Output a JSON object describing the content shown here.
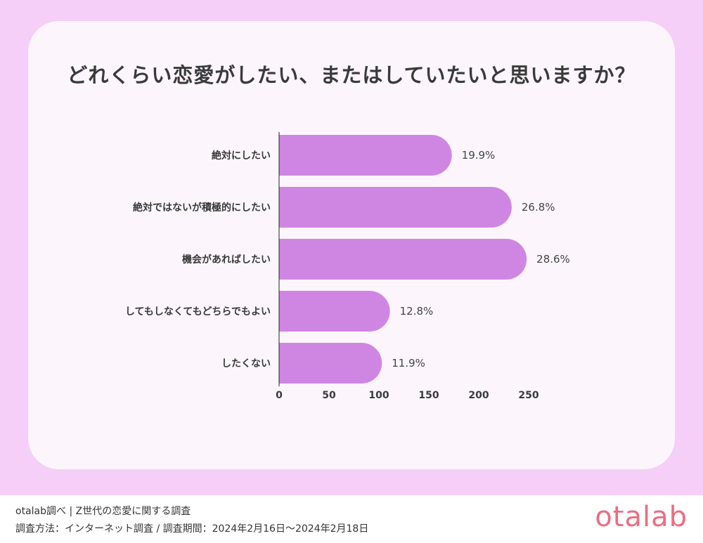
{
  "title": "どれくらい恋愛がしたい、またはしていたいと思いますか？",
  "chart_data": {
    "type": "bar",
    "orientation": "horizontal",
    "categories": [
      "絶対にしたい",
      "絶対ではないが積極的にしたい",
      "機会があればしたい",
      "してもしなくてもどちらでもよい",
      "したくない"
    ],
    "values": [
      173,
      233,
      248,
      111,
      103
    ],
    "data_labels": [
      "19.9%",
      "26.8%",
      "28.6%",
      "12.8%",
      "11.9%"
    ],
    "xlim": [
      0,
      250
    ],
    "xticks": [
      "0",
      "50",
      "100",
      "150",
      "200",
      "250"
    ],
    "color": "#cf86e3",
    "grid": false
  },
  "footer": {
    "line1": "otalab調べ | Z世代の恋愛に関する調査",
    "line2": "調査方法：インターネット調査 / 調査期間：2024年2月16日〜2024年2月18日",
    "logo": "otalab"
  },
  "colors": {
    "background": "#f5cff8",
    "card": "#fcf6fc",
    "bar": "#cf86e3",
    "logo": "#ec6d7f"
  }
}
